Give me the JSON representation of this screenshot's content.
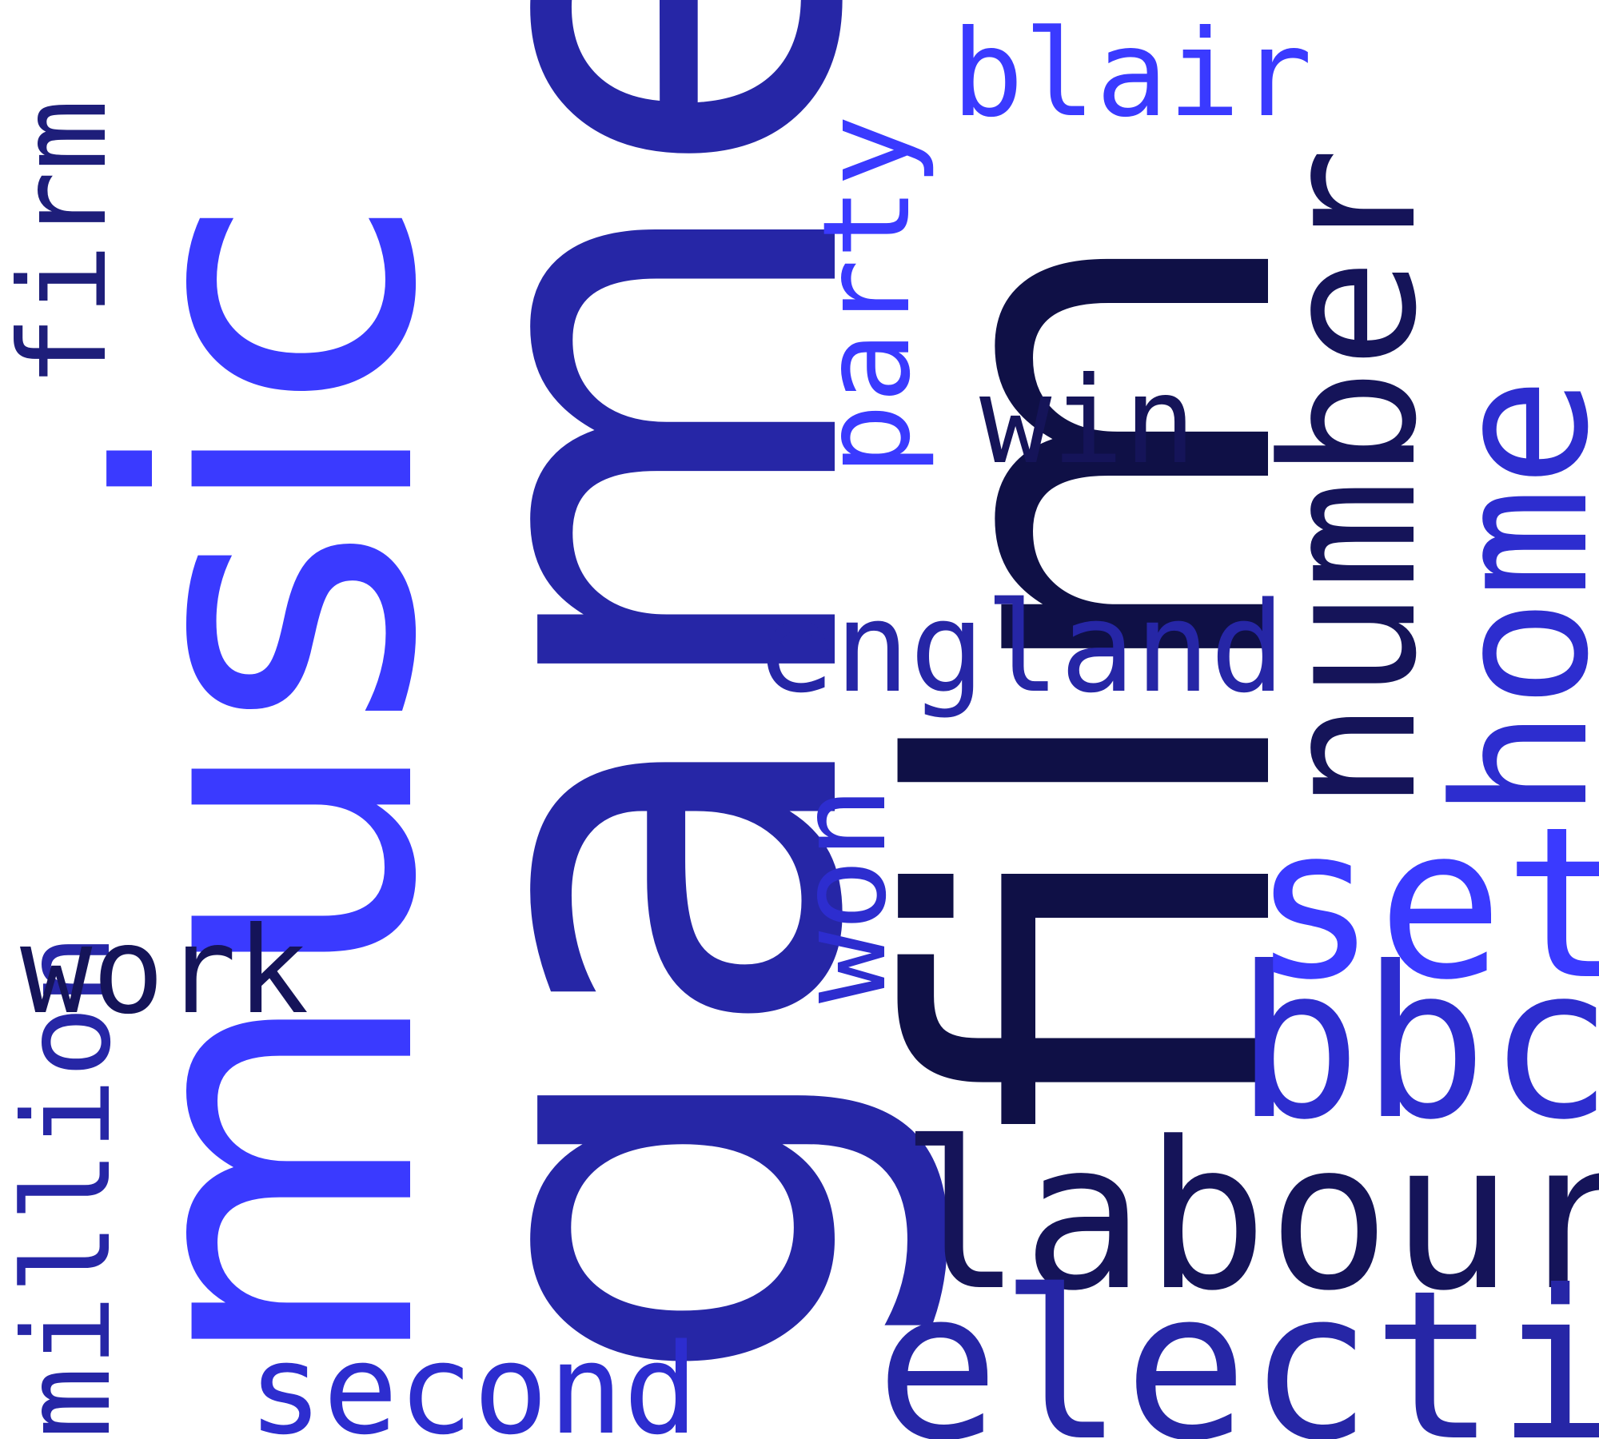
{
  "background": "#ffffff",
  "palette": {
    "bright_blue": "#3a3aff",
    "medium_blue": "#2626a6",
    "dark_navy": "#0f1046",
    "blue_violet": "#2d2dcf"
  },
  "words": {
    "music": {
      "text": "music",
      "orientation": "vertical",
      "color": "#3a3aff"
    },
    "game": {
      "text": "game",
      "orientation": "vertical",
      "color": "#2626a6"
    },
    "film": {
      "text": "film",
      "orientation": "vertical",
      "color": "#0f1046"
    },
    "number": {
      "text": "number",
      "orientation": "vertical",
      "color": "#151459"
    },
    "home": {
      "text": "home",
      "orientation": "vertical",
      "color": "#2d2dcf"
    },
    "party": {
      "text": "party",
      "orientation": "vertical",
      "color": "#3a3aff"
    },
    "won": {
      "text": "won",
      "orientation": "vertical",
      "color": "#2d2dcf"
    },
    "firm": {
      "text": "firm",
      "orientation": "vertical",
      "color": "#1e1e7a"
    },
    "million": {
      "text": "million",
      "orientation": "vertical",
      "color": "#2626a6"
    },
    "blair": {
      "text": "blair",
      "orientation": "horizontal",
      "color": "#3a3aff"
    },
    "win": {
      "text": "win",
      "orientation": "horizontal",
      "color": "#151459"
    },
    "england": {
      "text": "england",
      "orientation": "horizontal",
      "color": "#2626a6"
    },
    "work": {
      "text": "work",
      "orientation": "horizontal",
      "color": "#151459"
    },
    "second": {
      "text": "second",
      "orientation": "horizontal",
      "color": "#2d2dcf"
    },
    "labour": {
      "text": "labour",
      "orientation": "horizontal",
      "color": "#151459"
    },
    "election": {
      "text": "election",
      "orientation": "horizontal",
      "color": "#2626a6"
    },
    "bbc": {
      "text": "bbc",
      "orientation": "horizontal",
      "color": "#2d2dcf"
    },
    "set": {
      "text": "set",
      "orientation": "horizontal",
      "color": "#3a3aff"
    }
  }
}
